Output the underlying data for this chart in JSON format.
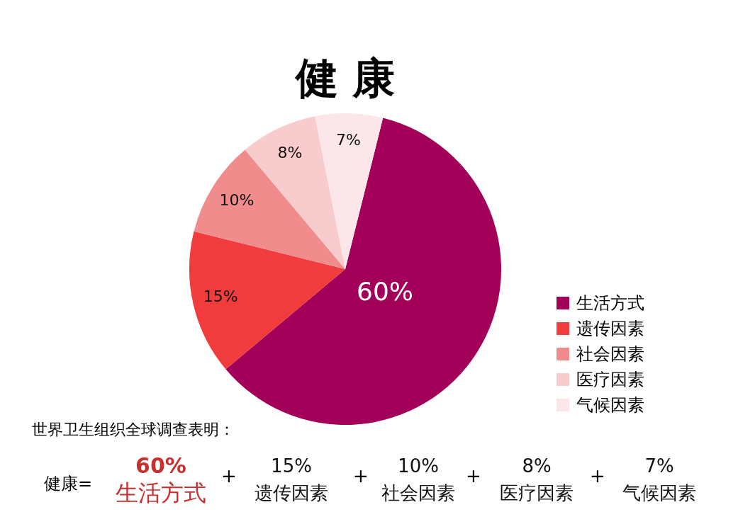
{
  "chart_data": {
    "type": "pie",
    "title": "健 康",
    "categories": [
      "生活方式",
      "遗传因素",
      "社会因素",
      "医疗因素",
      "气候因素"
    ],
    "values": [
      60,
      15,
      10,
      8,
      7
    ],
    "value_labels": [
      "60%",
      "15%",
      "10%",
      "8%",
      "7%"
    ],
    "colors": [
      "#a3005a",
      "#f03c3c",
      "#f08c8c",
      "#f8cccc",
      "#fbe6ea"
    ],
    "legend": "right",
    "annotations": [
      "世界卫生组织全球调查表明：",
      "健康=",
      "+"
    ]
  }
}
